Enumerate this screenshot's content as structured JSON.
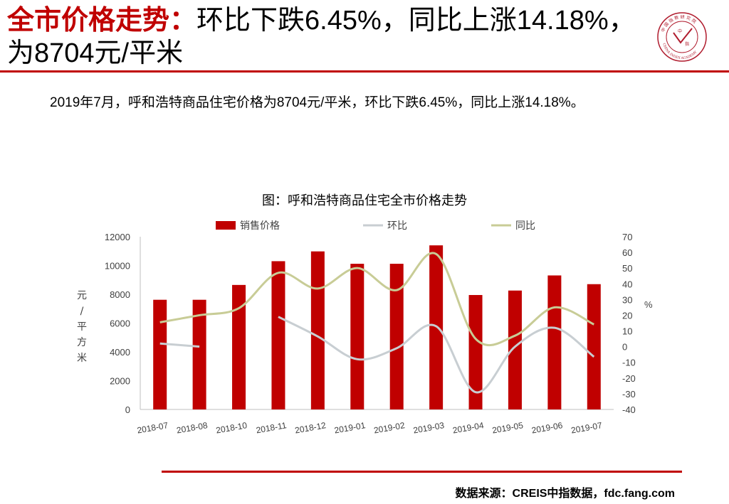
{
  "header": {
    "title_highlight": "全市价格走势：",
    "title_rest": "环比下跌6.45%，同比上涨14.18%，为8704元/平米"
  },
  "logo": {
    "text_top": "中 国 指 数 研 究 院",
    "text_bottom": "CHINA INDEX ACADEMY",
    "center_text_1": "中",
    "center_text_2": "指",
    "color": "#b01c2e"
  },
  "summary": "2019年7月，呼和浩特商品住宅价格为8704元/平米，环比下跌6.45%，同比上涨14.18%。",
  "chart_title": "图：呼和浩特商品住宅全市价格走势",
  "footer": {
    "source": "数据来源：CREIS中指数据，fdc.fang.com"
  },
  "chart_data": {
    "type": "bar",
    "categories": [
      "2018-07",
      "2018-08",
      "2018-10",
      "2018-11",
      "2018-12",
      "2019-01",
      "2019-02",
      "2019-03",
      "2019-04",
      "2019-05",
      "2019-06",
      "2019-07"
    ],
    "series": [
      {
        "name": "销售价格",
        "type": "bar",
        "axis": "left",
        "color": "#c00000",
        "values": [
          7620,
          7620,
          8650,
          10300,
          10980,
          10120,
          10120,
          11400,
          7950,
          8260,
          9310,
          8704
        ]
      },
      {
        "name": "环比",
        "type": "line",
        "axis": "right",
        "color": "#c8ced2",
        "values": [
          2,
          0,
          null,
          19,
          6.5,
          -8,
          -1,
          13,
          -29,
          0,
          12,
          -6.45
        ]
      },
      {
        "name": "同比",
        "type": "line",
        "axis": "right",
        "color": "#c8cc96",
        "values": [
          15.5,
          20,
          24.5,
          47,
          37,
          50,
          36,
          59,
          5,
          7,
          25,
          14.18
        ]
      }
    ],
    "ylabel_left": "元/平方米",
    "ylabel_right": "%",
    "ylim_left": [
      0,
      12000
    ],
    "yticks_left": [
      0,
      2000,
      4000,
      6000,
      8000,
      10000,
      12000
    ],
    "ylim_right": [
      -40,
      70
    ],
    "yticks_right": [
      -40,
      -30,
      -20,
      -10,
      0,
      10,
      20,
      30,
      40,
      50,
      60,
      70
    ],
    "legend_position": "top-center",
    "grid": false
  }
}
